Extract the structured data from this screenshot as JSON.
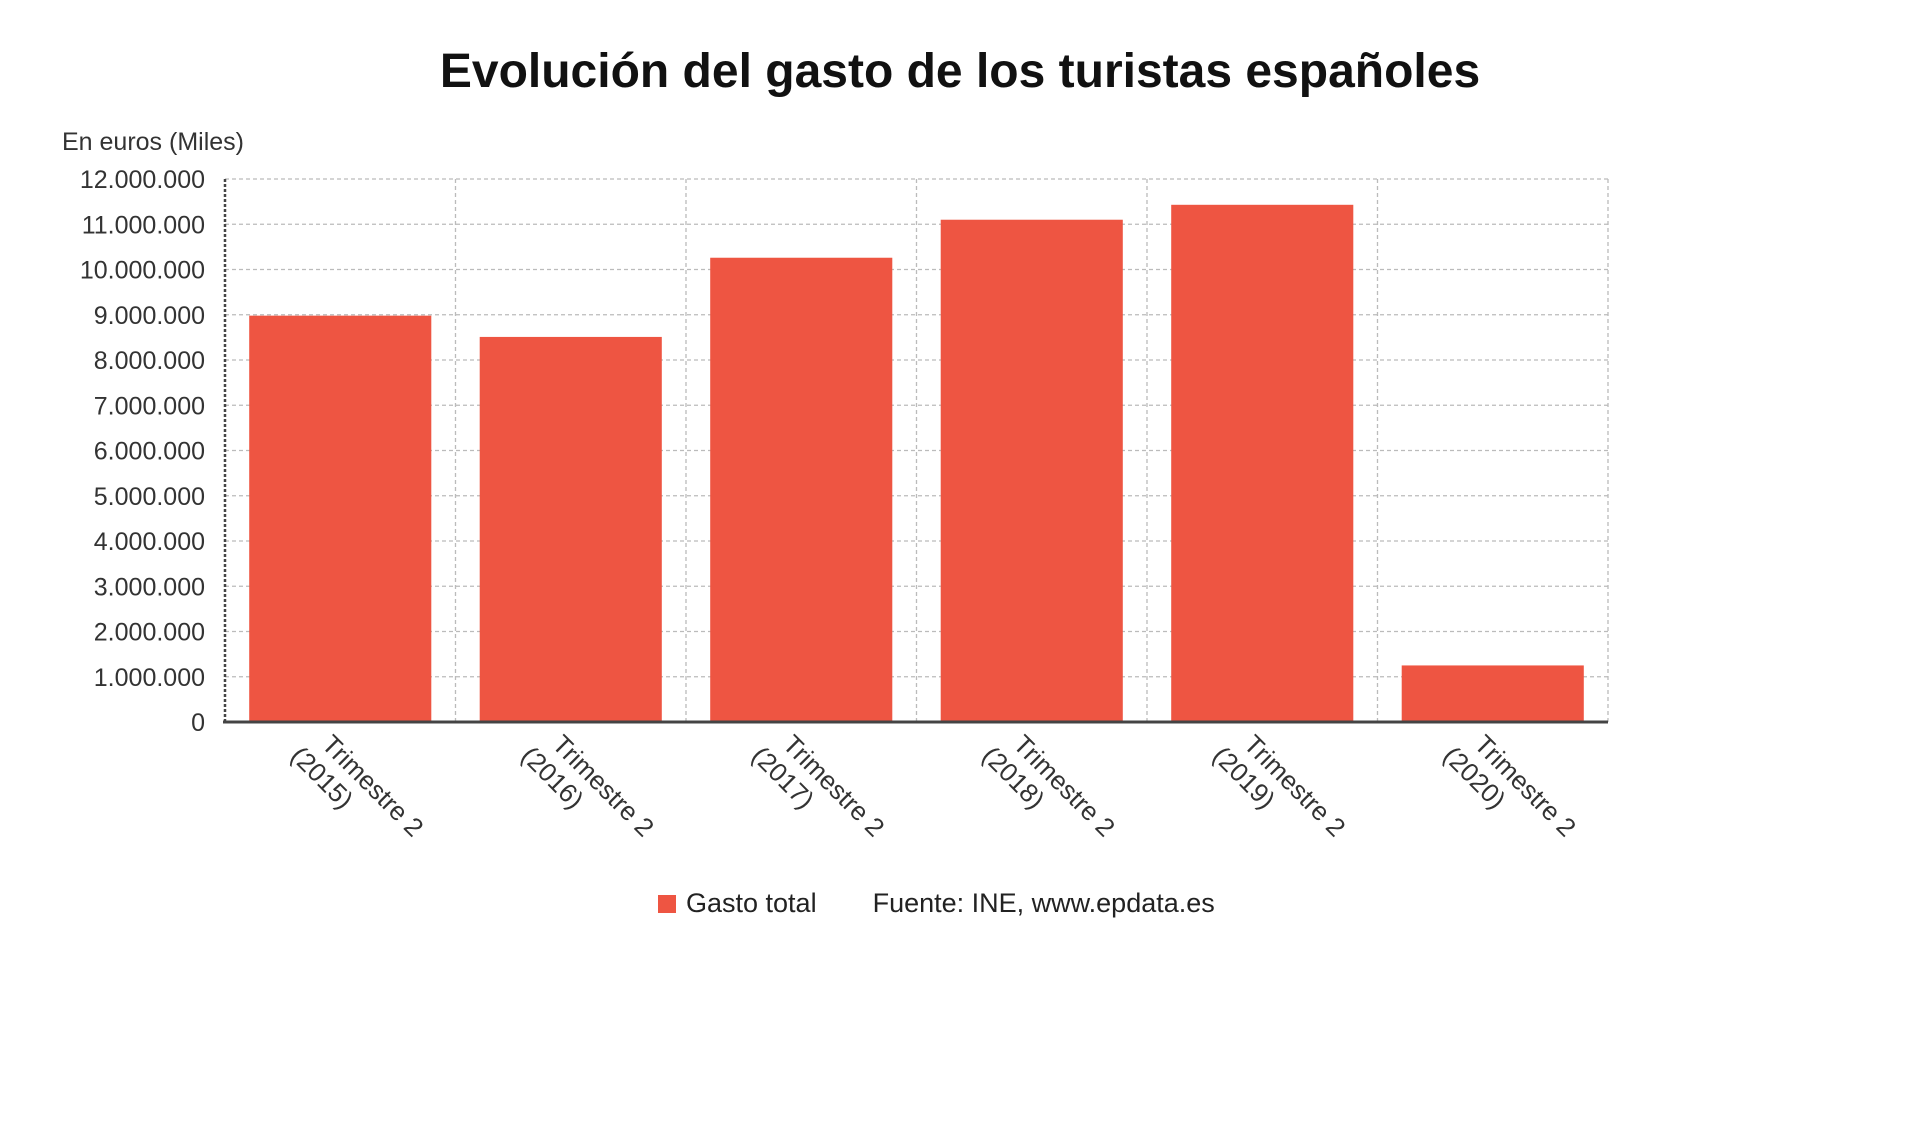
{
  "chart_data": {
    "type": "bar",
    "title": "Evolución del gasto de los turistas españoles",
    "ylabel": "En euros (Miles)",
    "xlabel": "",
    "ylim": [
      0,
      12000000
    ],
    "yticks": [
      {
        "value": 0,
        "label": "0"
      },
      {
        "value": 1000000,
        "label": "1.000.000"
      },
      {
        "value": 2000000,
        "label": "2.000.000"
      },
      {
        "value": 3000000,
        "label": "3.000.000"
      },
      {
        "value": 4000000,
        "label": "4.000.000"
      },
      {
        "value": 5000000,
        "label": "5.000.000"
      },
      {
        "value": 6000000,
        "label": "6.000.000"
      },
      {
        "value": 7000000,
        "label": "7.000.000"
      },
      {
        "value": 8000000,
        "label": "8.000.000"
      },
      {
        "value": 9000000,
        "label": "9.000.000"
      },
      {
        "value": 10000000,
        "label": "10.000.000"
      },
      {
        "value": 11000000,
        "label": "11.000.000"
      },
      {
        "value": 12000000,
        "label": "12.000.000"
      }
    ],
    "categories": [
      [
        "Trimestre 2",
        "(2015)"
      ],
      [
        "Trimestre 2",
        "(2016)"
      ],
      [
        "Trimestre 2",
        "(2017)"
      ],
      [
        "Trimestre 2",
        "(2018)"
      ],
      [
        "Trimestre 2",
        "(2019)"
      ],
      [
        "Trimestre 2",
        "(2020)"
      ]
    ],
    "series": [
      {
        "name": "Gasto total",
        "color": "#ee5542",
        "values": [
          8980000,
          8510000,
          10260000,
          11100000,
          11430000,
          1250000
        ]
      }
    ],
    "grid": true,
    "legend_position": "bottom"
  },
  "source": "Fuente: INE, www.epdata.es"
}
